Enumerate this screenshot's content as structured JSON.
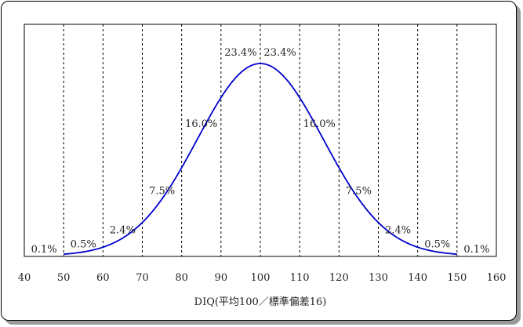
{
  "chart_data": {
    "type": "line",
    "title": "",
    "xlabel": "DIQ(平均100／標準偏差16)",
    "ylabel": "",
    "xlim": [
      40,
      160
    ],
    "x_ticks": [
      {
        "value": 40,
        "label": "40"
      },
      {
        "value": 50,
        "label": "50"
      },
      {
        "value": 60,
        "label": "60"
      },
      {
        "value": 70,
        "label": "70"
      },
      {
        "value": 80,
        "label": "80"
      },
      {
        "value": 90,
        "label": "90"
      },
      {
        "value": 100,
        "label": "100"
      },
      {
        "value": 110,
        "label": "110"
      },
      {
        "value": 120,
        "label": "120"
      },
      {
        "value": 130,
        "label": "130"
      },
      {
        "value": 140,
        "label": "140"
      },
      {
        "value": 150,
        "label": "150"
      },
      {
        "value": 160,
        "label": "160"
      }
    ],
    "grid": "vertical dashed lines at x = 50 to 150, every 10",
    "curve": {
      "kind": "normal distribution",
      "mean": 100,
      "sd": 16,
      "x_range": [
        50,
        150
      ],
      "color": "#0000cc"
    },
    "annotations": [
      {
        "x": 45,
        "text": "0.1%"
      },
      {
        "x": 55,
        "text": "0.5%"
      },
      {
        "x": 65,
        "text": "2.4%"
      },
      {
        "x": 75,
        "text": "7.5%"
      },
      {
        "x": 85,
        "text": "16.0%"
      },
      {
        "x": 95,
        "text": "23.4%"
      },
      {
        "x": 105,
        "text": "23.4%"
      },
      {
        "x": 115,
        "text": "16.0%"
      },
      {
        "x": 125,
        "text": "7.5%"
      },
      {
        "x": 135,
        "text": "2.4%"
      },
      {
        "x": 145,
        "text": "0.5%"
      },
      {
        "x": 155,
        "text": "0.1%"
      }
    ]
  }
}
